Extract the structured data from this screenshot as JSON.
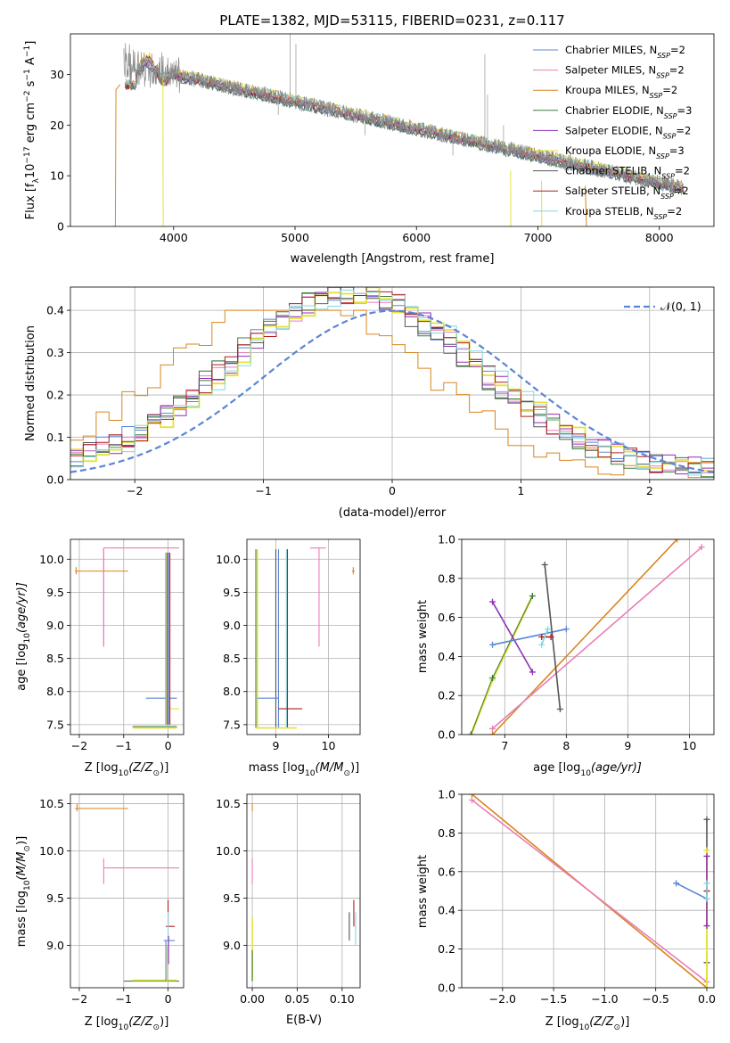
{
  "chart_data": [
    {
      "type": "line",
      "title": "PLATE=1382, MJD=53115, FIBERID=0231, z=0.117",
      "xlabel": "wavelength [Angstrom, rest frame]",
      "ylabel_parts": [
        "Flux [f",
        "λ",
        "10",
        "−17",
        " erg cm",
        "−2",
        " s",
        "−1",
        " A",
        "−1",
        "]"
      ],
      "xlim": [
        3150,
        8450
      ],
      "ylim": [
        0,
        38
      ],
      "xticks": [
        4000,
        5000,
        6000,
        7000,
        8000
      ],
      "yticks": [
        0,
        10,
        20,
        30
      ],
      "grid": false,
      "legend_position": "top-right",
      "spectrum_range": [
        3600,
        8200
      ],
      "series": [
        {
          "label": "Chabrier MILES",
          "sub": "SSP",
          "n": "2",
          "color": "#5b85d8"
        },
        {
          "label": "Salpeter MILES",
          "sub": "SSP",
          "n": "2",
          "color": "#e77fb7"
        },
        {
          "label": "Kroupa MILES",
          "sub": "SSP",
          "n": "2",
          "color": "#d9851e"
        },
        {
          "label": "Chabrier ELODIE",
          "sub": "SSP",
          "n": "3",
          "color": "#3c7d3c"
        },
        {
          "label": "Salpeter ELODIE",
          "sub": "SSP",
          "n": "2",
          "color": "#8f2db5"
        },
        {
          "label": "Kroupa ELODIE",
          "sub": "SSP",
          "n": "3",
          "color": "#e5e13b"
        },
        {
          "label": "Chabrier STELIB",
          "sub": "SSP",
          "n": "2",
          "color": "#555555"
        },
        {
          "label": "Salpeter STELIB",
          "sub": "SSP",
          "n": "2",
          "color": "#b01d1d"
        },
        {
          "label": "Kroupa STELIB",
          "sub": "SSP",
          "n": "2",
          "color": "#86d6e0"
        }
      ],
      "data_color": "#888888"
    },
    {
      "type": "area",
      "xlabel": "(data-model)/error",
      "ylabel": "Normed distribution",
      "xlim": [
        -2.5,
        2.5
      ],
      "ylim": [
        0,
        0.455
      ],
      "xticks": [
        -2,
        -1,
        0,
        1,
        2
      ],
      "yticks": [
        0.0,
        0.1,
        0.2,
        0.3,
        0.4
      ],
      "grid": true,
      "legend_position": "top-right",
      "legend_label": "𝒩(0, 1)",
      "gaussian_color": "#5b85d8"
    },
    {
      "type": "scatter",
      "xlabel_parts": [
        "Z [log",
        "10",
        "(Z/Z",
        "⊙",
        ")]"
      ],
      "ylabel_parts": [
        "age  [log",
        "10",
        "(age/yr)]"
      ],
      "xlim": [
        -2.2,
        0.35
      ],
      "ylim": [
        7.35,
        10.3
      ],
      "xticks": [
        -2,
        -1,
        0
      ],
      "yticks": [
        7.5,
        8.0,
        8.5,
        9.0,
        9.5,
        10.0
      ],
      "grid": true
    },
    {
      "type": "scatter",
      "xlabel_parts": [
        "mass [log",
        "10",
        "(M/M",
        "⊙",
        ")]"
      ],
      "xlim": [
        8.45,
        10.6
      ],
      "ylim": [
        7.35,
        10.3
      ],
      "xticks": [
        9,
        10
      ],
      "yticks": [
        7.5,
        8.0,
        8.5,
        9.0,
        9.5,
        10.0
      ],
      "grid": true
    },
    {
      "type": "line",
      "xlabel_parts": [
        "age  [log",
        "10",
        "(age/yr)]"
      ],
      "ylabel": "mass weight",
      "xlim": [
        6.3,
        10.4
      ],
      "ylim": [
        0,
        1
      ],
      "xticks": [
        7,
        8,
        9,
        10
      ],
      "yticks": [
        0.0,
        0.2,
        0.4,
        0.6,
        0.8,
        1.0
      ],
      "grid": true
    },
    {
      "type": "scatter",
      "xlabel_parts": [
        "Z [log",
        "10",
        "(Z/Z",
        "⊙",
        ")]"
      ],
      "ylabel_parts": [
        "mass [log",
        "10",
        "(M/M",
        "⊙",
        ")]"
      ],
      "xlim": [
        -2.2,
        0.35
      ],
      "ylim": [
        8.55,
        10.6
      ],
      "xticks": [
        -2,
        -1,
        0
      ],
      "yticks": [
        9.0,
        9.5,
        10.0,
        10.5
      ],
      "grid": true
    },
    {
      "type": "scatter",
      "xlabel": "E(B-V)",
      "xlim": [
        -0.006,
        0.12
      ],
      "ylim": [
        8.55,
        10.6
      ],
      "xticks": [
        0.0,
        0.05,
        0.1
      ],
      "xtick_labels": [
        "0.00",
        "0.05",
        "0.10"
      ],
      "yticks": [
        9.0,
        9.5,
        10.0,
        10.5
      ],
      "grid": true
    },
    {
      "type": "line",
      "xlabel_parts": [
        "Z [log",
        "10",
        "(Z/Z",
        "⊙",
        ")]"
      ],
      "ylabel": "mass weight",
      "xlim": [
        -2.4,
        0.07
      ],
      "ylim": [
        0,
        1
      ],
      "xticks": [
        -2.0,
        -1.5,
        -1.0,
        -0.5,
        0.0
      ],
      "xtick_labels": [
        "−2.0",
        "−1.5",
        "−1.0",
        "−0.5",
        "0.0"
      ],
      "yticks": [
        0.0,
        0.2,
        0.4,
        0.6,
        0.8,
        1.0
      ],
      "grid": true
    }
  ]
}
